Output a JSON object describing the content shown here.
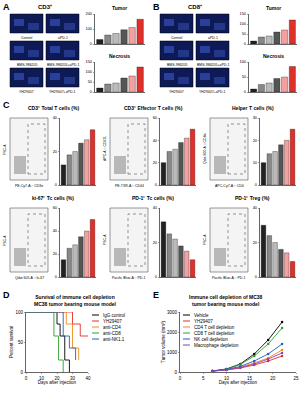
{
  "panel_letters": [
    "A",
    "B",
    "C",
    "D",
    "E"
  ],
  "image_panels": [
    {
      "header": "CD3⁺",
      "labels": [
        "Control",
        "aPD-1",
        "BMS-986205",
        "BMS-986205+aPD-1",
        "YH29407",
        "YH29407+aPD-1"
      ]
    },
    {
      "header": "CD8⁺",
      "labels": [
        "Control",
        "aPD-1",
        "BMS-986205",
        "BMS-986205+aPD-1",
        "YH29407",
        "YH29407+aPD-1"
      ]
    }
  ],
  "flow_plots": [
    {
      "x_label": "PE-Cy7-A :: CD3e",
      "y_label": "FSC-A"
    },
    {
      "x_label": "PE-TXR-A :: CD44",
      "y_label": "APC-A :: CD62L"
    },
    {
      "x_label": "APC-Cy7-A :: CD4",
      "y_label": "Qdot 800-A :: CD8a"
    },
    {
      "x_label": "Qdot 605-A :: ki-67",
      "y_label": "FSC-A"
    },
    {
      "x_label": "Pacific Blue-A :: PD-1",
      "y_label": "FSC-A"
    },
    {
      "x_label": "Pacific Blue-A :: PD-1",
      "y_label": "FSC-A"
    }
  ],
  "chart_data": [
    {
      "type": "bar",
      "title": "Tumor",
      "categories": [
        "Control",
        "aPD-1",
        "BMS-986205",
        "BMS-986205+aPD-1",
        "YH29407",
        "YH29407+aPD-1"
      ],
      "values": [
        30,
        60,
        70,
        95,
        110,
        165
      ],
      "colors": [
        "#222222",
        "#888888",
        "#bbbbbb",
        "#555555",
        "#f4a0a0",
        "#e0302a"
      ],
      "ylim": [
        0,
        200
      ],
      "yticks": [
        0,
        100,
        200
      ],
      "tick_labels": "y",
      "grid": false
    },
    {
      "type": "bar",
      "title": "Necrosis",
      "categories": [
        "Control",
        "aPD-1",
        "BMS-986205",
        "BMS-986205+aPD-1",
        "YH29407",
        "YH29407+aPD-1"
      ],
      "values": [
        20,
        40,
        45,
        70,
        80,
        125
      ],
      "colors": [
        "#222222",
        "#888888",
        "#bbbbbb",
        "#555555",
        "#f4a0a0",
        "#e0302a"
      ],
      "ylim": [
        0,
        150
      ],
      "yticks": [
        0,
        50,
        100,
        150
      ],
      "tick_labels": "y",
      "grid": false
    },
    {
      "type": "bar",
      "title": "Tumor",
      "categories": [
        "Control",
        "aPD-1",
        "BMS-986205",
        "BMS-986205+aPD-1",
        "YH29407",
        "YH29407+aPD-1"
      ],
      "values": [
        15,
        35,
        40,
        60,
        70,
        120
      ],
      "colors": [
        "#222222",
        "#888888",
        "#bbbbbb",
        "#555555",
        "#f4a0a0",
        "#e0302a"
      ],
      "ylim": [
        0,
        150
      ],
      "yticks": [
        0,
        50,
        100,
        150
      ],
      "tick_labels": "y",
      "grid": false
    },
    {
      "type": "bar",
      "title": "Necrosis",
      "categories": [
        "Control",
        "aPD-1",
        "BMS-986205",
        "BMS-986205+aPD-1",
        "YH29407",
        "YH29407+aPD-1"
      ],
      "values": [
        10,
        25,
        30,
        45,
        50,
        85
      ],
      "colors": [
        "#222222",
        "#888888",
        "#bbbbbb",
        "#555555",
        "#f4a0a0",
        "#e0302a"
      ],
      "ylim": [
        0,
        100
      ],
      "yticks": [
        0,
        50,
        100
      ],
      "tick_labels": "y",
      "grid": false
    },
    {
      "type": "bar",
      "title": "CD3⁺ Total T cells (%)",
      "categories": [
        "Control",
        "aPD-1",
        "BMS-986205",
        "BMS-986205+aPD-1",
        "YH29407",
        "YH29407+aPD-1"
      ],
      "values": [
        12,
        18,
        20,
        25,
        27,
        33
      ],
      "colors": [
        "#222222",
        "#888888",
        "#bbbbbb",
        "#555555",
        "#f4a0a0",
        "#e0302a"
      ],
      "ylim": [
        0,
        40
      ],
      "yticks": [
        0,
        20,
        40
      ],
      "tick_labels": "y",
      "grid": false
    },
    {
      "type": "bar",
      "title": "CD3⁺ Effector T cells (%)",
      "categories": [
        "Control",
        "aPD-1",
        "BMS-986205",
        "BMS-986205+aPD-1",
        "YH29407",
        "YH29407+aPD-1"
      ],
      "values": [
        20,
        30,
        32,
        38,
        42,
        50
      ],
      "colors": [
        "#222222",
        "#888888",
        "#bbbbbb",
        "#555555",
        "#f4a0a0",
        "#e0302a"
      ],
      "ylim": [
        0,
        60
      ],
      "yticks": [
        0,
        20,
        40,
        60
      ],
      "tick_labels": "y",
      "grid": false
    },
    {
      "type": "bar",
      "title": "Helper T cells (%)",
      "categories": [
        "Control",
        "aPD-1",
        "BMS-986205",
        "BMS-986205+aPD-1",
        "YH29407",
        "YH29407+aPD-1"
      ],
      "values": [
        10,
        14,
        15,
        18,
        20,
        25
      ],
      "colors": [
        "#222222",
        "#888888",
        "#bbbbbb",
        "#555555",
        "#f4a0a0",
        "#e0302a"
      ],
      "ylim": [
        0,
        30
      ],
      "yticks": [
        0,
        10,
        20,
        30
      ],
      "tick_labels": "y",
      "grid": false
    },
    {
      "type": "bar",
      "title": "ki-67⁺ Tc cells (%)",
      "categories": [
        "Control",
        "aPD-1",
        "BMS-986205",
        "BMS-986205+aPD-1",
        "YH29407",
        "YH29407+aPD-1"
      ],
      "values": [
        15,
        25,
        28,
        35,
        40,
        50
      ],
      "colors": [
        "#222222",
        "#888888",
        "#bbbbbb",
        "#555555",
        "#f4a0a0",
        "#e0302a"
      ],
      "ylim": [
        0,
        60
      ],
      "yticks": [
        0,
        20,
        40,
        60
      ],
      "tick_labels": "y",
      "grid": false
    },
    {
      "type": "bar",
      "title": "PD-1⁺ Tc cells (%)",
      "categories": [
        "Control",
        "aPD-1",
        "BMS-986205",
        "BMS-986205+aPD-1",
        "YH29407",
        "YH29407+aPD-1"
      ],
      "values": [
        32,
        25,
        22,
        18,
        15,
        10
      ],
      "colors": [
        "#222222",
        "#888888",
        "#bbbbbb",
        "#555555",
        "#f4a0a0",
        "#e0302a"
      ],
      "ylim": [
        0,
        40
      ],
      "yticks": [
        0,
        20,
        40
      ],
      "tick_labels": "y",
      "grid": false
    },
    {
      "type": "bar",
      "title": "PD-1⁺ Treg (%)",
      "categories": [
        "Control",
        "aPD-1",
        "BMS-986205",
        "BMS-986205+aPD-1",
        "YH29407",
        "YH29407+aPD-1"
      ],
      "values": [
        30,
        24,
        20,
        16,
        14,
        9
      ],
      "colors": [
        "#222222",
        "#888888",
        "#bbbbbb",
        "#555555",
        "#f4a0a0",
        "#e0302a"
      ],
      "ylim": [
        0,
        40
      ],
      "yticks": [
        0,
        20,
        40
      ],
      "tick_labels": "y",
      "grid": false
    },
    {
      "type": "line",
      "title": "Survival of immune cell depletion MC38 tumor bearing mouse model",
      "x_label": "Days after injection",
      "y_label": "Percent survival",
      "line_style": "step",
      "legend": "right",
      "grid": false,
      "xlim": [
        0,
        40
      ],
      "xticks": [
        0,
        10,
        20,
        30,
        40
      ],
      "ylim": [
        0,
        100
      ],
      "yticks": [
        0,
        50,
        100
      ],
      "series": [
        {
          "name": "IgG control",
          "color": "#000000",
          "x": [
            0,
            20,
            22,
            25,
            28
          ],
          "values": [
            100,
            80,
            60,
            20,
            0
          ]
        },
        {
          "name": "YH29407",
          "color": "#e0302a",
          "x": [
            0,
            30,
            35,
            40
          ],
          "values": [
            100,
            80,
            60,
            60
          ]
        },
        {
          "name": "anti-CD4",
          "color": "#f08c1a",
          "x": [
            0,
            26,
            30,
            34
          ],
          "values": [
            100,
            80,
            40,
            20
          ]
        },
        {
          "name": "anti-CD8",
          "color": "#2ca02c",
          "x": [
            0,
            18,
            21,
            24
          ],
          "values": [
            100,
            60,
            20,
            0
          ]
        },
        {
          "name": "anti-NK1.1",
          "color": "#1f5fbf",
          "x": [
            0,
            24,
            28,
            32
          ],
          "values": [
            100,
            60,
            40,
            20
          ]
        }
      ]
    },
    {
      "type": "line",
      "title": "Immune cell depletion of MC38 tumor bearing mouse model",
      "x_label": "Days after injection",
      "y_label": "Tumor volume (mm³)",
      "marker": "circle",
      "legend": "upper left",
      "grid": false,
      "xlim": [
        0,
        25
      ],
      "xticks": [
        0,
        5,
        10,
        15,
        20,
        25
      ],
      "ylim": [
        0,
        3000
      ],
      "yticks": [
        0,
        1000,
        2000,
        3000
      ],
      "series": [
        {
          "name": "Vehicle",
          "color": "#000000",
          "x": [
            7,
            10,
            13,
            16,
            19,
            22
          ],
          "values": [
            50,
            150,
            400,
            900,
            1600,
            2500
          ]
        },
        {
          "name": "YH29407",
          "color": "#e0302a",
          "x": [
            7,
            10,
            13,
            16,
            19,
            22
          ],
          "values": [
            50,
            100,
            200,
            350,
            550,
            800
          ]
        },
        {
          "name": "CD4 T cell depletion",
          "color": "#f08c1a",
          "x": [
            7,
            10,
            13,
            16,
            19,
            22
          ],
          "values": [
            50,
            110,
            250,
            450,
            700,
            1100
          ]
        },
        {
          "name": "CD8 T cell depletion",
          "color": "#2ca02c",
          "x": [
            7,
            10,
            13,
            16,
            19,
            22
          ],
          "values": [
            50,
            140,
            380,
            800,
            1400,
            2200
          ]
        },
        {
          "name": "NK cell depletion",
          "color": "#1f5fbf",
          "x": [
            7,
            10,
            13,
            16,
            19,
            22
          ],
          "values": [
            50,
            120,
            280,
            550,
            900,
            1400
          ]
        },
        {
          "name": "Macrophage depletion",
          "color": "#8c3fbf",
          "x": [
            7,
            10,
            13,
            16,
            19,
            22
          ],
          "values": [
            50,
            105,
            220,
            400,
            650,
            950
          ]
        }
      ]
    }
  ]
}
